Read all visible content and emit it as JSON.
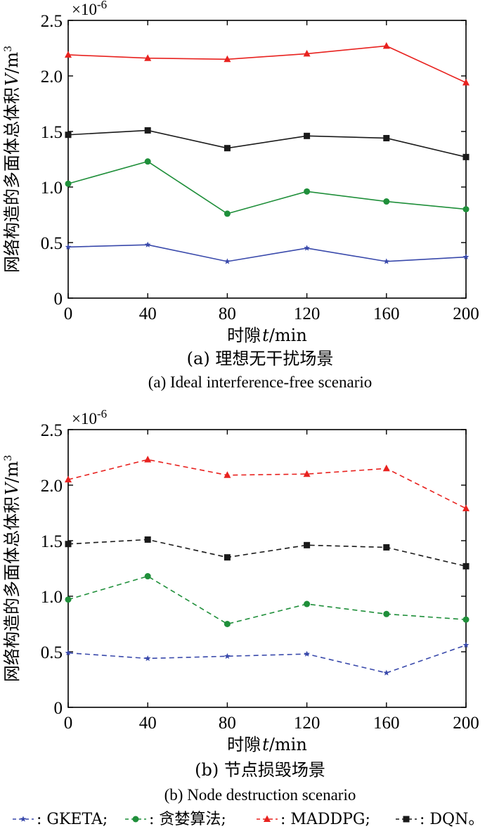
{
  "chart_data": [
    {
      "type": "line",
      "line_style": "solid",
      "categories": [
        0,
        40,
        80,
        120,
        160,
        200
      ],
      "ylim": [
        0,
        2.5
      ],
      "multiplier": "×10",
      "multiplier_exp": "-6",
      "ylabel": "网络构造的多面体总体积",
      "ylabel_var": "V",
      "ylabel_unit": "/m",
      "ylabel_unit_exp": "3",
      "xlabel": "时隙",
      "xlabel_var": "t",
      "xlabel_unit": "/min",
      "xticks": [
        "0",
        "40",
        "80",
        "120",
        "160",
        "200"
      ],
      "yticks": [
        "0",
        "0.5",
        "1.0",
        "1.5",
        "2.0",
        "2.5"
      ],
      "caption_cn": "(a) 理想无干扰场景",
      "caption_en": "(a) Ideal interference-free scenario",
      "series": [
        {
          "name": "MADDPG",
          "color": "#e8221f",
          "marker": "triangle",
          "values": [
            2.19,
            2.16,
            2.15,
            2.2,
            2.27,
            1.94
          ]
        },
        {
          "name": "DQN",
          "color": "#1a1a1a",
          "marker": "square",
          "values": [
            1.47,
            1.51,
            1.35,
            1.46,
            1.44,
            1.27
          ]
        },
        {
          "name": "贪婪算法",
          "color": "#1f8f3a",
          "marker": "circle",
          "values": [
            1.03,
            1.23,
            0.76,
            0.96,
            0.87,
            0.8
          ]
        },
        {
          "name": "GKETA",
          "color": "#3949ab",
          "marker": "star",
          "values": [
            0.46,
            0.48,
            0.33,
            0.45,
            0.33,
            0.37
          ]
        }
      ]
    },
    {
      "type": "line",
      "line_style": "dashed",
      "categories": [
        0,
        40,
        80,
        120,
        160,
        200
      ],
      "ylim": [
        0,
        2.5
      ],
      "multiplier": "×10",
      "multiplier_exp": "-6",
      "ylabel": "网络构造的多面体总体积",
      "ylabel_var": "V",
      "ylabel_unit": "/m",
      "ylabel_unit_exp": "3",
      "xlabel": "时隙",
      "xlabel_var": "t",
      "xlabel_unit": "/min",
      "xticks": [
        "0",
        "40",
        "80",
        "120",
        "160",
        "200"
      ],
      "yticks": [
        "0",
        "0.5",
        "1.0",
        "1.5",
        "2.0",
        "2.5"
      ],
      "caption_cn": "(b) 节点损毁场景",
      "caption_en": "(b) Node destruction scenario",
      "series": [
        {
          "name": "MADDPG",
          "color": "#e8221f",
          "marker": "triangle",
          "values": [
            2.05,
            2.23,
            2.09,
            2.1,
            2.15,
            1.79
          ]
        },
        {
          "name": "DQN",
          "color": "#1a1a1a",
          "marker": "square",
          "values": [
            1.47,
            1.51,
            1.35,
            1.46,
            1.44,
            1.27
          ]
        },
        {
          "name": "贪婪算法",
          "color": "#1f8f3a",
          "marker": "circle",
          "values": [
            0.97,
            1.18,
            0.75,
            0.93,
            0.84,
            0.79
          ]
        },
        {
          "name": "GKETA",
          "color": "#3949ab",
          "marker": "star",
          "values": [
            0.49,
            0.44,
            0.46,
            0.48,
            0.31,
            0.56
          ]
        }
      ]
    }
  ],
  "legend": [
    {
      "label": ": GKETA;",
      "color": "#3949ab",
      "marker": "star"
    },
    {
      "label": ": 贪婪算法;",
      "color": "#1f8f3a",
      "marker": "circle"
    },
    {
      "label": ": MADDPG;",
      "color": "#e8221f",
      "marker": "triangle"
    },
    {
      "label": ": DQN。",
      "color": "#1a1a1a",
      "marker": "square"
    }
  ]
}
